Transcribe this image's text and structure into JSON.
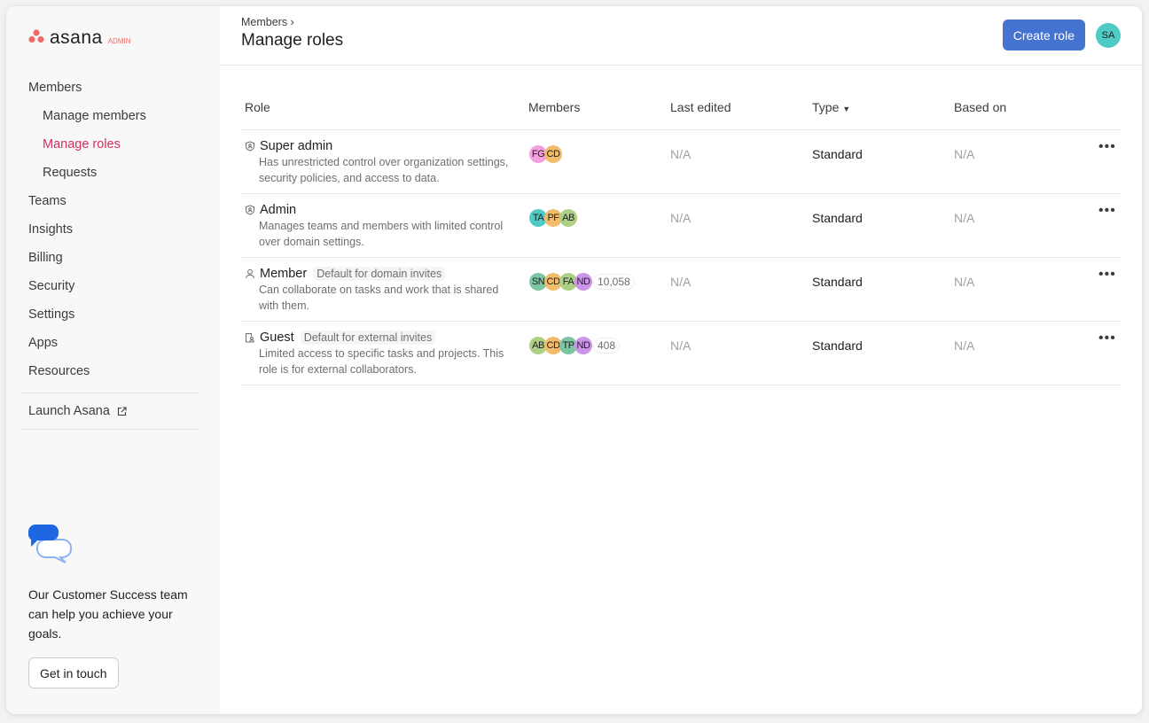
{
  "brand": {
    "name": "asana",
    "tag": "ADMIN"
  },
  "sidebar": {
    "items": [
      {
        "label": "Members",
        "level": 0
      },
      {
        "label": "Manage members",
        "level": 1
      },
      {
        "label": "Manage roles",
        "level": 1,
        "active": true
      },
      {
        "label": "Requests",
        "level": 1
      },
      {
        "label": "Teams",
        "level": 0
      },
      {
        "label": "Insights",
        "level": 0
      },
      {
        "label": "Billing",
        "level": 0
      },
      {
        "label": "Security",
        "level": 0
      },
      {
        "label": "Settings",
        "level": 0
      },
      {
        "label": "Apps",
        "level": 0
      },
      {
        "label": "Resources",
        "level": 0
      }
    ],
    "launch": "Launch Asana",
    "cs_text": "Our Customer Success team can help you achieve your goals.",
    "cs_button": "Get in touch"
  },
  "header": {
    "breadcrumb": "Members",
    "title": "Manage roles",
    "create_button": "Create role",
    "avatar": "SA"
  },
  "table": {
    "columns": [
      "Role",
      "Members",
      "Last edited",
      "Type",
      "Based on"
    ],
    "rows": [
      {
        "icon": "shield-icon",
        "name": "Super admin",
        "tag": "",
        "desc": "Has unrestricted control over organization settings, security policies, and access to data.",
        "avatars": [
          {
            "i": "FG",
            "c": "#f49fe0"
          },
          {
            "i": "CD",
            "c": "#f1bd6c"
          }
        ],
        "count": "",
        "last_edited": "N/A",
        "type": "Standard",
        "based_on": "N/A"
      },
      {
        "icon": "shield-icon",
        "name": "Admin",
        "tag": "",
        "desc": "Manages teams and members with limited control over domain settings.",
        "avatars": [
          {
            "i": "TA",
            "c": "#4ecbc4"
          },
          {
            "i": "PF",
            "c": "#f1bd6c"
          },
          {
            "i": "AB",
            "c": "#aecf86"
          }
        ],
        "count": "",
        "last_edited": "N/A",
        "type": "Standard",
        "based_on": "N/A"
      },
      {
        "icon": "person-icon",
        "name": "Member",
        "tag": "Default for domain invites",
        "desc": "Can collaborate on tasks and work that is shared with them.",
        "avatars": [
          {
            "i": "SN",
            "c": "#7ec6a3"
          },
          {
            "i": "CD",
            "c": "#f1bd6c"
          },
          {
            "i": "FA",
            "c": "#aecf86"
          },
          {
            "i": "ND",
            "c": "#cd95ea"
          }
        ],
        "count": "10,058",
        "last_edited": "N/A",
        "type": "Standard",
        "based_on": "N/A"
      },
      {
        "icon": "guest-icon",
        "name": "Guest",
        "tag": "Default for external invites",
        "desc": "Limited access to specific tasks and projects. This role is for external collaborators.",
        "avatars": [
          {
            "i": "AB",
            "c": "#aecf86"
          },
          {
            "i": "CD",
            "c": "#f1bd6c"
          },
          {
            "i": "TP",
            "c": "#7ec6a3"
          },
          {
            "i": "ND",
            "c": "#cd95ea"
          }
        ],
        "count": "408",
        "last_edited": "N/A",
        "type": "Standard",
        "based_on": "N/A"
      }
    ]
  }
}
